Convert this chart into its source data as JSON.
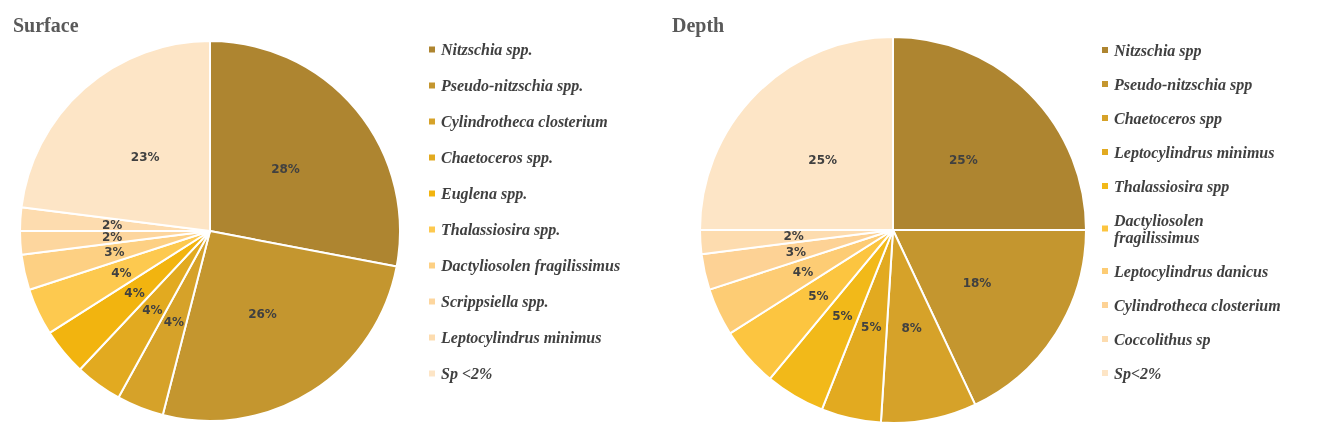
{
  "chart_data": [
    {
      "type": "pie",
      "title": "Surface",
      "legend": "right",
      "categories": [
        "Nitzschia spp.",
        "Pseudo-nitzschia spp.",
        "Cylindrotheca closterium",
        "Chaetoceros spp.",
        "Euglena spp.",
        "Thalassiosira spp.",
        "Dactyliosolen fragilissimus",
        "Scrippsiella spp.",
        "Leptocylindrus minimus",
        "Sp <2%"
      ],
      "values": [
        28,
        26,
        4,
        4,
        4,
        4,
        3,
        2,
        2,
        23
      ],
      "value_labels": [
        "28%",
        "26%",
        "4%",
        "4%",
        "4%",
        "4%",
        "3%",
        "2%",
        "2%",
        "23%"
      ],
      "colors": [
        "#ae8530",
        "#c4962f",
        "#d6a229",
        "#e2aa20",
        "#f2b40f",
        "#fdc94f",
        "#fdd083",
        "#fdd69e",
        "#fddcaf",
        "#fde5c6"
      ]
    },
    {
      "type": "pie",
      "title": "Depth",
      "legend": "right",
      "categories": [
        "Nitzschia spp",
        "Pseudo-nitzschia spp",
        "Chaetoceros spp",
        "Leptocylindrus minimus",
        "Thalassiosira spp",
        "Dactyliosolen fragilissimus",
        "Leptocylindrus danicus",
        "Cylindrotheca closterium",
        "Coccolithus sp",
        "Sp<2%"
      ],
      "values": [
        25,
        18,
        8,
        5,
        5,
        5,
        4,
        3,
        2,
        25
      ],
      "value_labels": [
        "25%",
        "18%",
        "8%",
        "5%",
        "5%",
        "5%",
        "4%",
        "3%",
        "2%",
        "25%"
      ],
      "colors": [
        "#ae8530",
        "#c4962f",
        "#d6a229",
        "#e2aa20",
        "#f2b919",
        "#fcc540",
        "#fdcc74",
        "#fdd295",
        "#fddcaf",
        "#fde5c6"
      ]
    }
  ]
}
